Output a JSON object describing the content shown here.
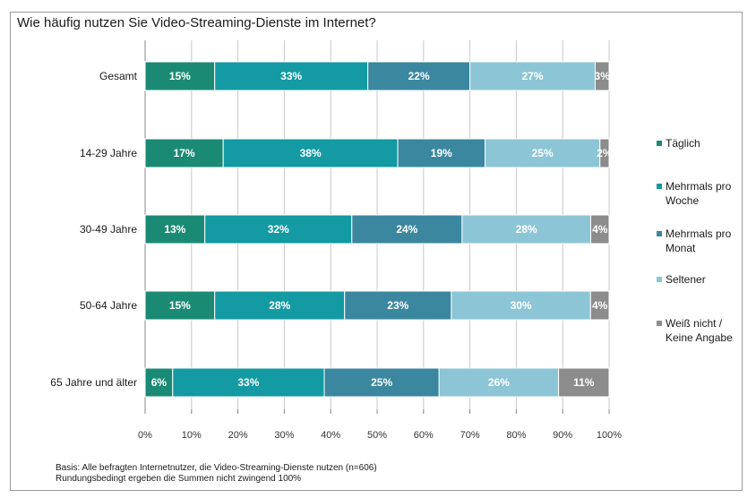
{
  "chart_data": {
    "type": "bar",
    "orientation": "horizontal",
    "stacked": true,
    "title": "Wie häufig nutzen Sie Video-Streaming-Dienste im Internet?",
    "categories": [
      "Gesamt",
      "14-29 Jahre",
      "30-49 Jahre",
      "50-64 Jahre",
      "65 Jahre und älter"
    ],
    "series": [
      {
        "name": "Täglich",
        "color": "#1b8a74",
        "values": [
          15,
          17,
          13,
          15,
          6
        ]
      },
      {
        "name": "Mehrmals pro Woche",
        "color": "#139aa3",
        "values": [
          33,
          38,
          32,
          28,
          33
        ]
      },
      {
        "name": "Mehrmals pro Monat",
        "color": "#3b87a0",
        "values": [
          22,
          19,
          24,
          23,
          25
        ]
      },
      {
        "name": "Seltener",
        "color": "#8cc5d6",
        "values": [
          27,
          25,
          28,
          30,
          26
        ]
      },
      {
        "name": "Weiß nicht / Keine Angabe",
        "color": "#8c8c8c",
        "values": [
          3,
          2,
          4,
          4,
          11
        ]
      }
    ],
    "data_labels": [
      [
        "15%",
        "33%",
        "22%",
        "27%",
        "3%"
      ],
      [
        "17%",
        "38%",
        "19%",
        "25%",
        "2%"
      ],
      [
        "13%",
        "32%",
        "24%",
        "28%",
        "4%"
      ],
      [
        "15%",
        "28%",
        "23%",
        "30%",
        "4%"
      ],
      [
        "6%",
        "33%",
        "25%",
        "26%",
        "11%"
      ]
    ],
    "xlim": [
      0,
      100
    ],
    "xticks": [
      0,
      10,
      20,
      30,
      40,
      50,
      60,
      70,
      80,
      90,
      100
    ],
    "xtick_labels": [
      "0%",
      "10%",
      "20%",
      "30%",
      "40%",
      "50%",
      "60%",
      "70%",
      "80%",
      "90%",
      "100%"
    ],
    "grid": true,
    "legend_position": "right"
  },
  "legend": [
    {
      "lines": [
        "Täglich"
      ],
      "color": "#1b8a74"
    },
    {
      "lines": [
        "Mehrmals pro",
        "Woche"
      ],
      "color": "#139aa3"
    },
    {
      "lines": [
        "Mehrmals pro",
        "Monat"
      ],
      "color": "#3b87a0"
    },
    {
      "lines": [
        "Seltener"
      ],
      "color": "#8cc5d6"
    },
    {
      "lines": [
        "Weiß nicht /",
        "Keine Angabe"
      ],
      "color": "#8c8c8c"
    }
  ],
  "footnote": {
    "line1": "Basis: Alle befragten Internetnutzer, die Video-Streaming-Dienste nutzen (n=606)",
    "line2": "Rundungsbedingt ergeben die Summen nicht zwingend 100%"
  }
}
